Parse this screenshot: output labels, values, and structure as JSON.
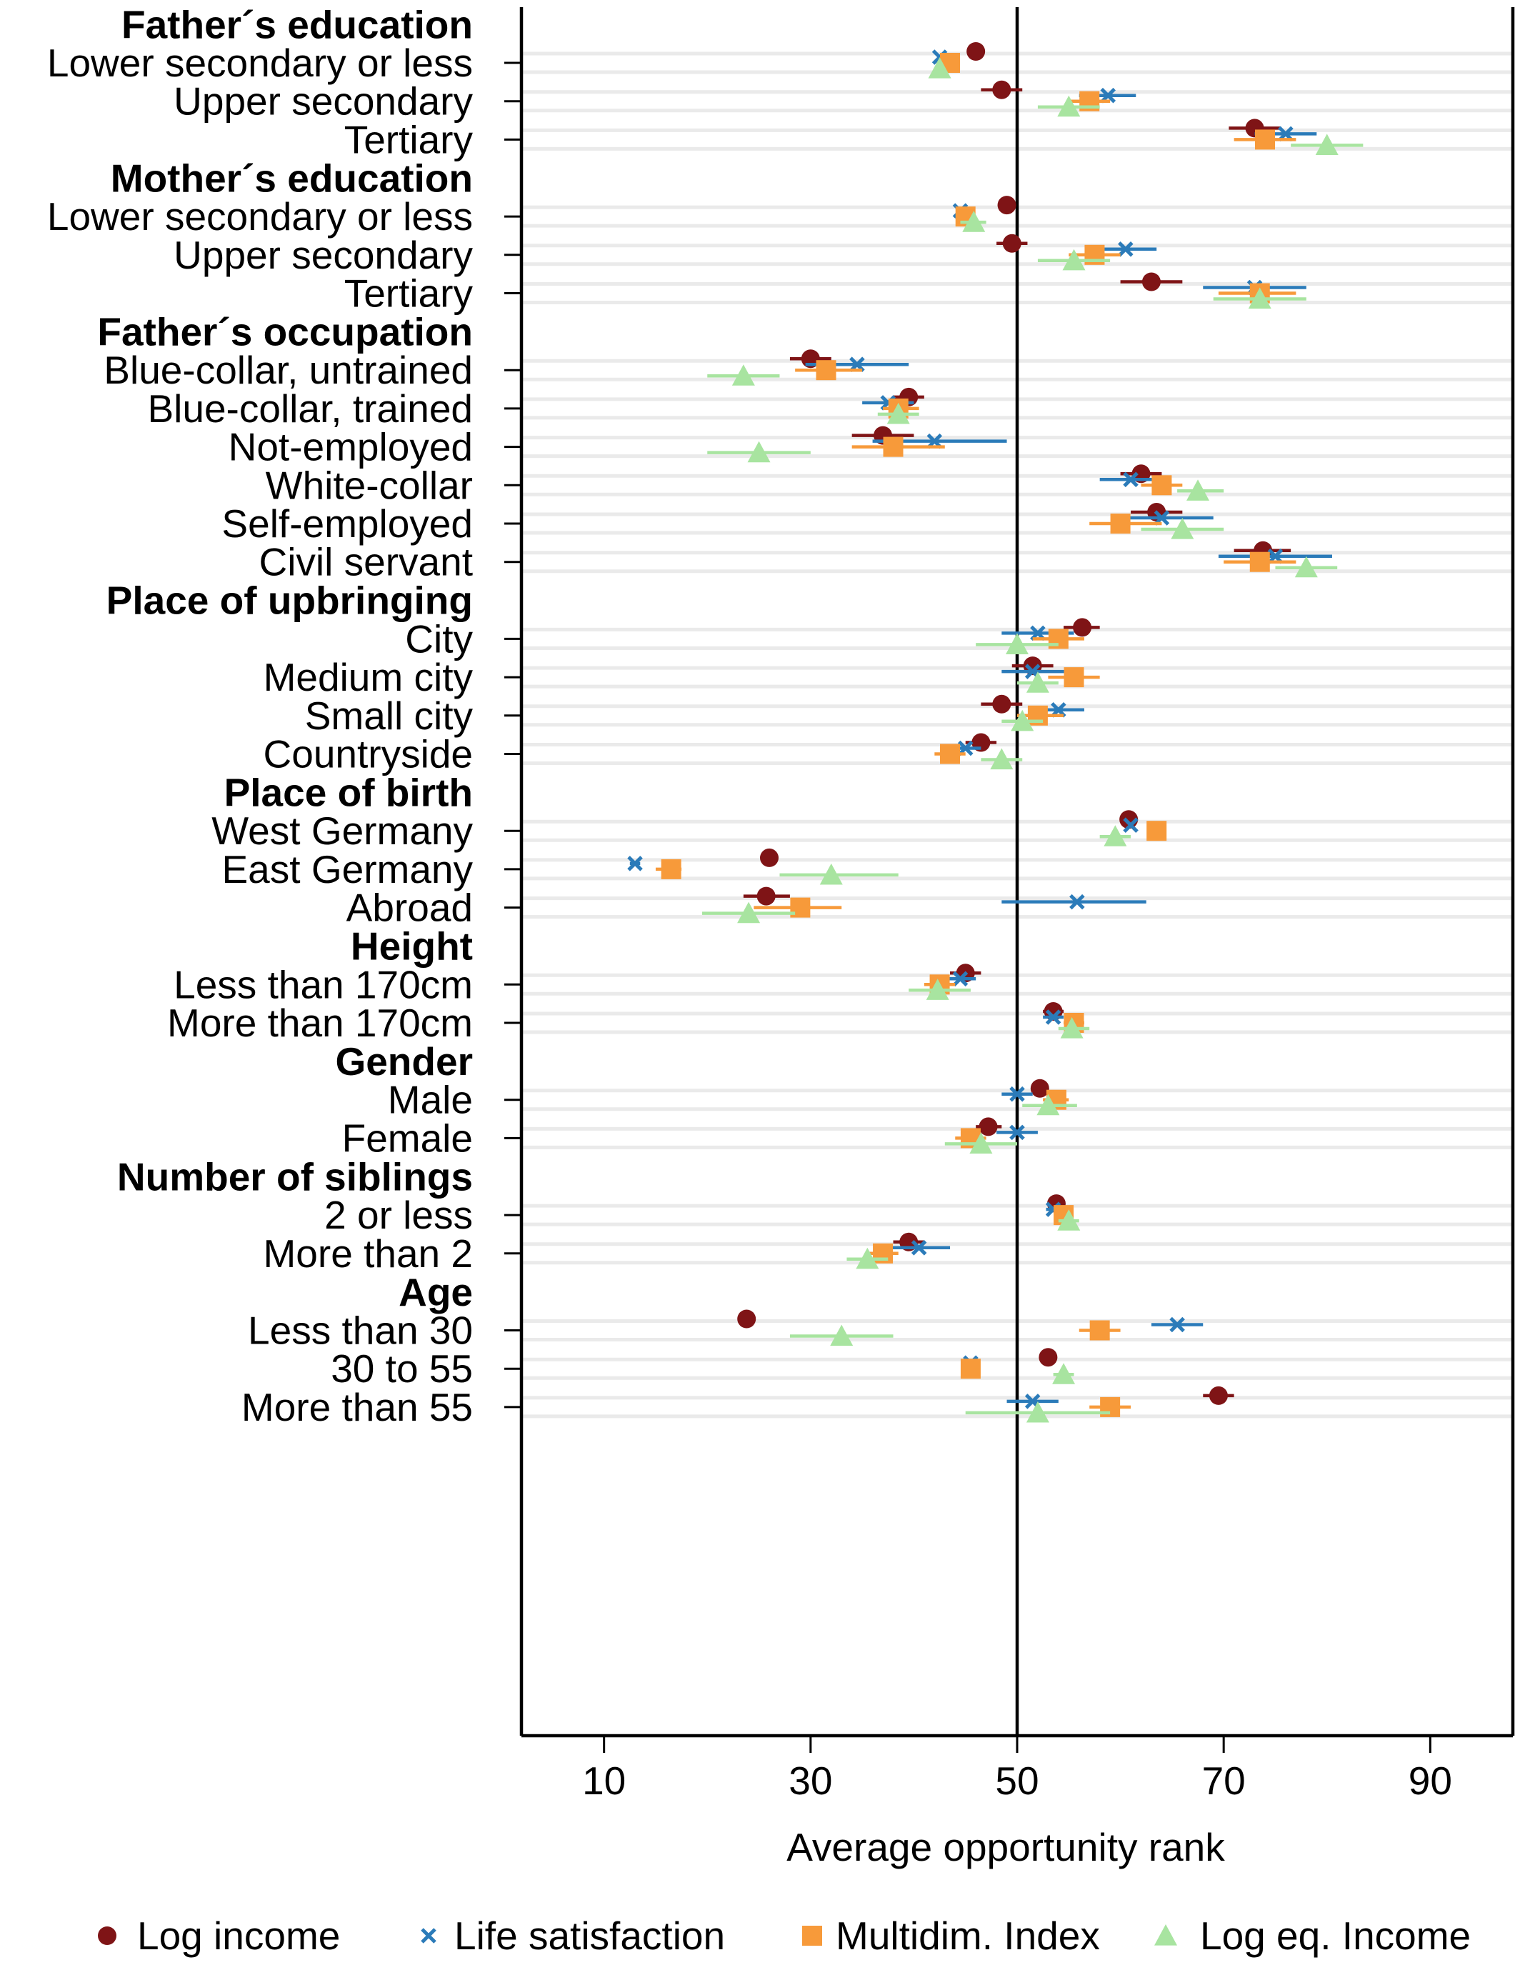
{
  "chart_data": {
    "type": "scatter",
    "xlabel": "Average opportunity rank",
    "xlim": [
      2,
      98
    ],
    "xticks": [
      10,
      30,
      50,
      70,
      90
    ],
    "reference_line": 50,
    "grid": "horizontal",
    "legend_position": "bottom",
    "series": [
      {
        "name": "Log income",
        "marker": "circle",
        "color": "#7f1416"
      },
      {
        "name": "Life satisfaction",
        "marker": "x",
        "color": "#2b7bb9"
      },
      {
        "name": "Multidim. Index",
        "marker": "square",
        "color": "#f79a3a"
      },
      {
        "name": "Log eq. Income",
        "marker": "triangle",
        "color": "#a8e4a0"
      }
    ],
    "groups": [
      {
        "title": "Father´s education",
        "items": [
          {
            "label": "Lower secondary or less",
            "values": [
              {
                "x": 46,
                "lo": null,
                "hi": null
              },
              {
                "x": 42.5,
                "lo": null,
                "hi": null
              },
              {
                "x": 43.5,
                "lo": null,
                "hi": null
              },
              {
                "x": 42.5,
                "lo": null,
                "hi": null
              }
            ]
          },
          {
            "label": "Upper secondary",
            "values": [
              {
                "x": 48.5,
                "lo": 46.5,
                "hi": 50.5
              },
              {
                "x": 58.8,
                "lo": 56,
                "hi": 61.5
              },
              {
                "x": 57,
                "lo": 55,
                "hi": 59
              },
              {
                "x": 55,
                "lo": 52,
                "hi": 58
              }
            ]
          },
          {
            "label": "Tertiary",
            "values": [
              {
                "x": 73,
                "lo": 70.5,
                "hi": 75.5
              },
              {
                "x": 76,
                "lo": 73,
                "hi": 79
              },
              {
                "x": 74,
                "lo": 71,
                "hi": 77
              },
              {
                "x": 80,
                "lo": 76.5,
                "hi": 83.5
              }
            ]
          }
        ]
      },
      {
        "title": "Mother´s education",
        "items": [
          {
            "label": "Lower secondary or less",
            "values": [
              {
                "x": 49,
                "lo": null,
                "hi": null
              },
              {
                "x": 44.5,
                "lo": null,
                "hi": null
              },
              {
                "x": 45,
                "lo": null,
                "hi": null
              },
              {
                "x": 45.8,
                "lo": 44.5,
                "hi": 47
              }
            ]
          },
          {
            "label": "Upper secondary",
            "values": [
              {
                "x": 49.5,
                "lo": 48,
                "hi": 51
              },
              {
                "x": 60.5,
                "lo": 57.5,
                "hi": 63.5
              },
              {
                "x": 57.5,
                "lo": 55,
                "hi": 60
              },
              {
                "x": 55.5,
                "lo": 52,
                "hi": 59
              }
            ]
          },
          {
            "label": "Tertiary",
            "values": [
              {
                "x": 63,
                "lo": 60,
                "hi": 66
              },
              {
                "x": 73,
                "lo": 68,
                "hi": 78
              },
              {
                "x": 73.5,
                "lo": 69.5,
                "hi": 77
              },
              {
                "x": 73.5,
                "lo": 69,
                "hi": 78
              }
            ]
          }
        ]
      },
      {
        "title": "Father´s occupation",
        "items": [
          {
            "label": "Blue-collar, untrained",
            "values": [
              {
                "x": 30,
                "lo": 28,
                "hi": 32
              },
              {
                "x": 34.5,
                "lo": 29.5,
                "hi": 39.5
              },
              {
                "x": 31.5,
                "lo": 28.5,
                "hi": 35
              },
              {
                "x": 23.5,
                "lo": 20,
                "hi": 27
              }
            ]
          },
          {
            "label": "Blue-collar, trained",
            "values": [
              {
                "x": 39.5,
                "lo": 38,
                "hi": 41
              },
              {
                "x": 37.5,
                "lo": 35,
                "hi": 40
              },
              {
                "x": 38.5,
                "lo": 37,
                "hi": 40.5
              },
              {
                "x": 38.5,
                "lo": 36.5,
                "hi": 40.5
              }
            ]
          },
          {
            "label": "Not-employed",
            "values": [
              {
                "x": 37,
                "lo": 34,
                "hi": 40
              },
              {
                "x": 42,
                "lo": 36,
                "hi": 49
              },
              {
                "x": 38,
                "lo": 34,
                "hi": 43
              },
              {
                "x": 25,
                "lo": 20,
                "hi": 30
              }
            ]
          },
          {
            "label": "White-collar",
            "values": [
              {
                "x": 62,
                "lo": 60,
                "hi": 64
              },
              {
                "x": 61,
                "lo": 58,
                "hi": 64
              },
              {
                "x": 64,
                "lo": 62,
                "hi": 66
              },
              {
                "x": 67.5,
                "lo": 65.5,
                "hi": 70
              }
            ]
          },
          {
            "label": "Self-employed",
            "values": [
              {
                "x": 63.5,
                "lo": 61,
                "hi": 66
              },
              {
                "x": 64,
                "lo": 60,
                "hi": 69
              },
              {
                "x": 60,
                "lo": 57,
                "hi": 64
              },
              {
                "x": 66,
                "lo": 62,
                "hi": 70
              }
            ]
          },
          {
            "label": "Civil servant",
            "values": [
              {
                "x": 73.8,
                "lo": 71,
                "hi": 76.5
              },
              {
                "x": 75,
                "lo": 69.5,
                "hi": 80.5
              },
              {
                "x": 73.5,
                "lo": 70,
                "hi": 77
              },
              {
                "x": 78,
                "lo": 75,
                "hi": 81
              }
            ]
          }
        ]
      },
      {
        "title": "Place of upbringing",
        "items": [
          {
            "label": "City",
            "values": [
              {
                "x": 56.3,
                "lo": 54.5,
                "hi": 58
              },
              {
                "x": 52,
                "lo": 48.5,
                "hi": 55.5
              },
              {
                "x": 54,
                "lo": 51.5,
                "hi": 56.5
              },
              {
                "x": 50,
                "lo": 46,
                "hi": 54
              }
            ]
          },
          {
            "label": "Medium city",
            "values": [
              {
                "x": 51.5,
                "lo": 49.5,
                "hi": 53.5
              },
              {
                "x": 51.5,
                "lo": 48.5,
                "hi": 55
              },
              {
                "x": 55.5,
                "lo": 53,
                "hi": 58
              },
              {
                "x": 52,
                "lo": 50,
                "hi": 54
              }
            ]
          },
          {
            "label": "Small city",
            "values": [
              {
                "x": 48.5,
                "lo": 46.5,
                "hi": 50.5
              },
              {
                "x": 54,
                "lo": 51.5,
                "hi": 56.5
              },
              {
                "x": 52,
                "lo": 50,
                "hi": 54.5
              },
              {
                "x": 50.5,
                "lo": 48.5,
                "hi": 52.5
              }
            ]
          },
          {
            "label": "Countryside",
            "values": [
              {
                "x": 46.5,
                "lo": 45,
                "hi": 48
              },
              {
                "x": 45,
                "lo": 43.5,
                "hi": 46.5
              },
              {
                "x": 43.5,
                "lo": 42,
                "hi": 45
              },
              {
                "x": 48.5,
                "lo": 46.5,
                "hi": 50.5
              }
            ]
          }
        ]
      },
      {
        "title": "Place of birth",
        "items": [
          {
            "label": "West Germany",
            "values": [
              {
                "x": 60.8,
                "lo": null,
                "hi": null
              },
              {
                "x": 61,
                "lo": null,
                "hi": null
              },
              {
                "x": 63.5,
                "lo": null,
                "hi": null
              },
              {
                "x": 59.5,
                "lo": 58,
                "hi": 61
              }
            ]
          },
          {
            "label": "East Germany",
            "values": [
              {
                "x": 26,
                "lo": null,
                "hi": null
              },
              {
                "x": 13,
                "lo": 12.5,
                "hi": 13.5
              },
              {
                "x": 16.5,
                "lo": 15,
                "hi": 17.5
              },
              {
                "x": 32,
                "lo": 27,
                "hi": 38.5
              }
            ]
          },
          {
            "label": "Abroad",
            "values": [
              {
                "x": 25.7,
                "lo": 23.5,
                "hi": 28
              },
              {
                "x": 55.8,
                "lo": 48.5,
                "hi": 62.5
              },
              {
                "x": 29,
                "lo": 24.5,
                "hi": 33
              },
              {
                "x": 24,
                "lo": 19.5,
                "hi": 28.5
              }
            ]
          }
        ]
      },
      {
        "title": "Height",
        "items": [
          {
            "label": "Less than 170cm",
            "values": [
              {
                "x": 45,
                "lo": 43.5,
                "hi": 46.5
              },
              {
                "x": 44.5,
                "lo": 43,
                "hi": 46
              },
              {
                "x": 42.5,
                "lo": 41,
                "hi": 44
              },
              {
                "x": 42.3,
                "lo": 39.5,
                "hi": 45.5
              }
            ]
          },
          {
            "label": "More than 170cm",
            "values": [
              {
                "x": 53.5,
                "lo": 52.5,
                "hi": 54.5
              },
              {
                "x": 53.5,
                "lo": 52.5,
                "hi": 54.5
              },
              {
                "x": 55.5,
                "lo": 54.5,
                "hi": 56.5
              },
              {
                "x": 55.3,
                "lo": 54,
                "hi": 57
              }
            ]
          }
        ]
      },
      {
        "title": "Gender",
        "items": [
          {
            "label": "Male",
            "values": [
              {
                "x": 52.2,
                "lo": null,
                "hi": null
              },
              {
                "x": 50,
                "lo": 48.5,
                "hi": 51.5
              },
              {
                "x": 53.8,
                "lo": 52.5,
                "hi": 55
              },
              {
                "x": 53,
                "lo": 50.5,
                "hi": 55.8
              }
            ]
          },
          {
            "label": "Female",
            "values": [
              {
                "x": 47.2,
                "lo": 46,
                "hi": 48.5
              },
              {
                "x": 50,
                "lo": 48,
                "hi": 52
              },
              {
                "x": 45.5,
                "lo": 44,
                "hi": 47
              },
              {
                "x": 46.5,
                "lo": 43,
                "hi": 50
              }
            ]
          }
        ]
      },
      {
        "title": "Number of siblings",
        "items": [
          {
            "label": "2 or less",
            "values": [
              {
                "x": 53.8,
                "lo": 53,
                "hi": 54.5
              },
              {
                "x": 53.5,
                "lo": 52.8,
                "hi": 54.2
              },
              {
                "x": 54.5,
                "lo": 53.8,
                "hi": 55.2
              },
              {
                "x": 55,
                "lo": 54,
                "hi": 56
              }
            ]
          },
          {
            "label": "More than 2",
            "values": [
              {
                "x": 39.5,
                "lo": 38,
                "hi": 41
              },
              {
                "x": 40.5,
                "lo": 37.5,
                "hi": 43.5
              },
              {
                "x": 37,
                "lo": 35.5,
                "hi": 38.5
              },
              {
                "x": 35.5,
                "lo": 33.5,
                "hi": 37.5
              }
            ]
          }
        ]
      },
      {
        "title": "Age",
        "items": [
          {
            "label": "Less than 30",
            "values": [
              {
                "x": 23.8,
                "lo": null,
                "hi": null
              },
              {
                "x": 65.5,
                "lo": 63,
                "hi": 68
              },
              {
                "x": 58,
                "lo": 56,
                "hi": 60
              },
              {
                "x": 33,
                "lo": 28,
                "hi": 38
              }
            ]
          },
          {
            "label": "30 to 55",
            "values": [
              {
                "x": 53,
                "lo": null,
                "hi": null
              },
              {
                "x": 45.5,
                "lo": null,
                "hi": null
              },
              {
                "x": 45.5,
                "lo": null,
                "hi": null
              },
              {
                "x": 54.5,
                "lo": 53.5,
                "hi": 55.5
              }
            ]
          },
          {
            "label": "More than 55",
            "values": [
              {
                "x": 69.5,
                "lo": 68,
                "hi": 71
              },
              {
                "x": 51.5,
                "lo": 49,
                "hi": 54
              },
              {
                "x": 59,
                "lo": 57,
                "hi": 61
              },
              {
                "x": 52,
                "lo": 45,
                "hi": 59
              }
            ]
          }
        ]
      }
    ]
  }
}
